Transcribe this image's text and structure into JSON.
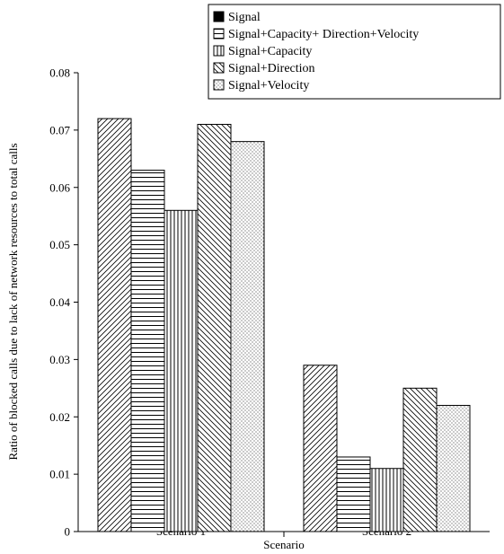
{
  "chart_data": {
    "type": "bar",
    "xlabel": "Scenario",
    "ylabel": "Ratio of blocked calls due to lack of network resources to total calls",
    "ylim": [
      0,
      0.08
    ],
    "yticks": [
      "0",
      "0.01",
      "0.02",
      "0.03",
      "0.04",
      "0.05",
      "0.06",
      "0.07",
      "0.08"
    ],
    "categories": [
      "Scenario 1",
      "Scenario 2"
    ],
    "legend_position": "top-right",
    "series": [
      {
        "name": "Signal",
        "pattern": "diag-up",
        "values": [
          0.072,
          0.029
        ]
      },
      {
        "name": "Signal+Capacity+ Direction+Velocity",
        "pattern": "horizontal",
        "values": [
          0.063,
          0.013
        ]
      },
      {
        "name": "Signal+Capacity",
        "pattern": "vertical",
        "values": [
          0.056,
          0.011
        ]
      },
      {
        "name": "Signal+Direction",
        "pattern": "diag-down",
        "values": [
          0.071,
          0.025
        ]
      },
      {
        "name": "Signal+Velocity",
        "pattern": "dots",
        "values": [
          0.068,
          0.022
        ]
      }
    ]
  }
}
